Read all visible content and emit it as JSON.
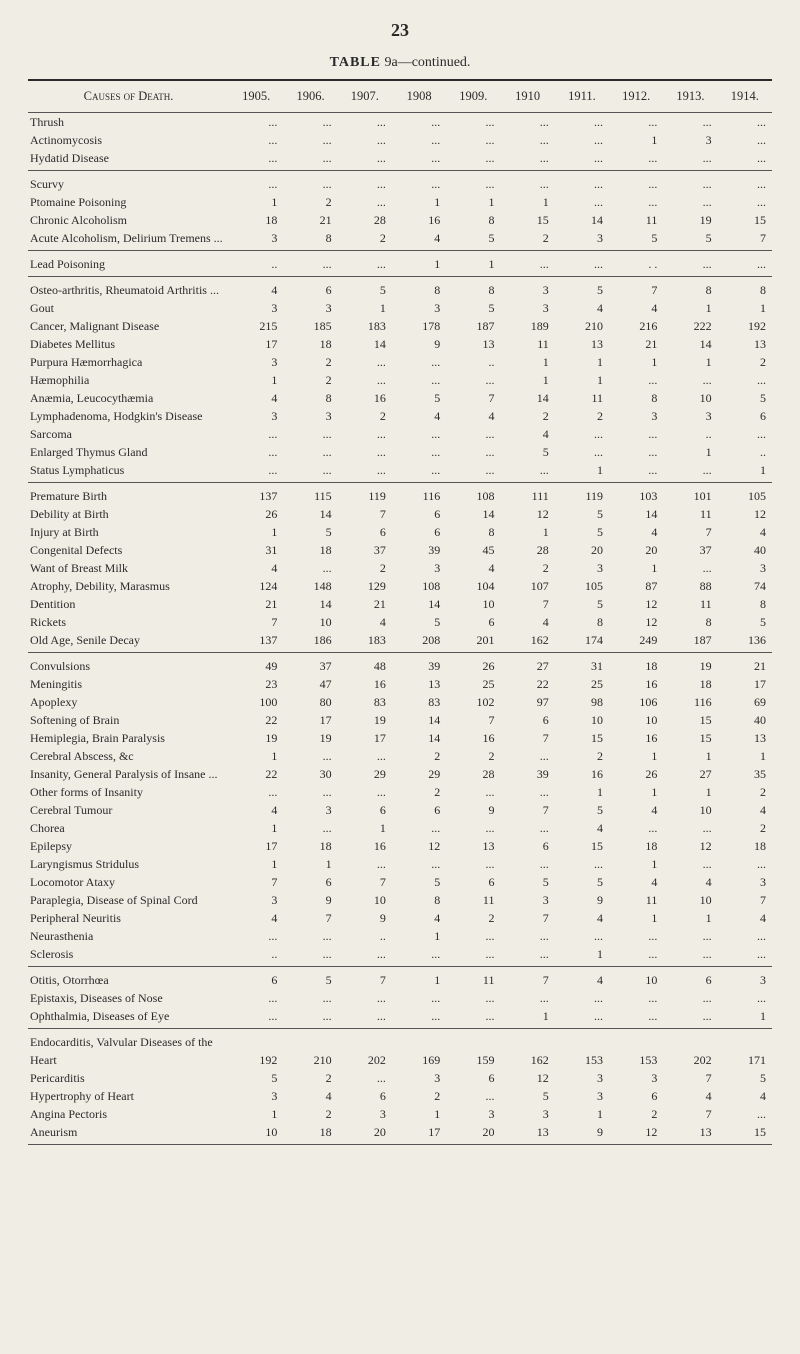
{
  "page_number": "23",
  "table_title_bold": "TABLE",
  "table_title_rest": "9a—continued.",
  "header_cause": "Causes of Death.",
  "years": [
    "1905.",
    "1906.",
    "1907.",
    "1908",
    "1909.",
    "1910",
    "1911.",
    "1912.",
    "1913.",
    "1914."
  ],
  "sections": [
    {
      "rows": [
        {
          "label": "Thrush ",
          "v": [
            "...",
            "...",
            "...",
            "...",
            "...",
            "...",
            "...",
            "...",
            "...",
            "..."
          ]
        },
        {
          "label": "Actinomycosis ",
          "v": [
            "...",
            "...",
            "...",
            "...",
            "...",
            "...",
            "...",
            "1",
            "3",
            "..."
          ]
        },
        {
          "label": "Hydatid Disease ",
          "v": [
            "...",
            "...",
            "...",
            "...",
            "...",
            "...",
            "...",
            "...",
            "...",
            "..."
          ]
        }
      ]
    },
    {
      "rows": [
        {
          "label": "Scurvy ",
          "v": [
            "...",
            "...",
            "...",
            "...",
            "...",
            "...",
            "...",
            "...",
            "...",
            "..."
          ]
        },
        {
          "label": "Ptomaine Poisoning ",
          "v": [
            "1",
            "2",
            "...",
            "1",
            "1",
            "1",
            "...",
            "...",
            "...",
            "..."
          ]
        },
        {
          "label": "Chronic Alcoholism ",
          "v": [
            "18",
            "21",
            "28",
            "16",
            "8",
            "15",
            "14",
            "11",
            "19",
            "15"
          ]
        },
        {
          "label": "Acute Alcoholism, Delirium Tremens ...",
          "v": [
            "3",
            "8",
            "2",
            "4",
            "5",
            "2",
            "3",
            "5",
            "5",
            "7"
          ]
        }
      ]
    },
    {
      "rows": [
        {
          "label": "Lead Poisoning ",
          "v": [
            "..",
            "...",
            "...",
            "1",
            "1",
            "...",
            "...",
            ". .",
            "...",
            "..."
          ]
        }
      ]
    },
    {
      "rows": [
        {
          "label": "Osteo-arthritis, Rheumatoid Arthritis ...",
          "v": [
            "4",
            "6",
            "5",
            "8",
            "8",
            "3",
            "5",
            "7",
            "8",
            "8"
          ]
        },
        {
          "label": "Gout ",
          "v": [
            "3",
            "3",
            "1",
            "3",
            "5",
            "3",
            "4",
            "4",
            "1",
            "1"
          ]
        },
        {
          "label": "Cancer, Malignant Disease ",
          "v": [
            "215",
            "185",
            "183",
            "178",
            "187",
            "189",
            "210",
            "216",
            "222",
            "192"
          ]
        },
        {
          "label": "Diabetes Mellitus ",
          "v": [
            "17",
            "18",
            "14",
            "9",
            "13",
            "11",
            "13",
            "21",
            "14",
            "13"
          ]
        },
        {
          "label": "Purpura Hæmorrhagica ",
          "v": [
            "3",
            "2",
            "...",
            "...",
            "..",
            "1",
            "1",
            "1",
            "1",
            "2"
          ]
        },
        {
          "label": "Hæmophilia ",
          "v": [
            "1",
            "2",
            "...",
            "...",
            "...",
            "1",
            "1",
            "...",
            "...",
            "..."
          ]
        },
        {
          "label": "Anæmia, Leucocythæmia ",
          "v": [
            "4",
            "8",
            "16",
            "5",
            "7",
            "14",
            "11",
            "8",
            "10",
            "5"
          ]
        },
        {
          "label": "Lymphadenoma, Hodgkin's Disease ",
          "v": [
            "3",
            "3",
            "2",
            "4",
            "4",
            "2",
            "2",
            "3",
            "3",
            "6"
          ]
        },
        {
          "label": "Sarcoma ",
          "v": [
            "...",
            "...",
            "...",
            "...",
            "...",
            "4",
            "...",
            "...",
            "..",
            "..."
          ]
        },
        {
          "label": "Enlarged Thymus Gland ",
          "v": [
            "...",
            "...",
            "...",
            "...",
            "...",
            "5",
            "...",
            "...",
            "1",
            ".."
          ]
        },
        {
          "label": "Status Lymphaticus ",
          "v": [
            "...",
            "...",
            "...",
            "...",
            "...",
            "...",
            "1",
            "...",
            "...",
            "1"
          ]
        }
      ]
    },
    {
      "rows": [
        {
          "label": "Premature Birth ",
          "v": [
            "137",
            "115",
            "119",
            "116",
            "108",
            "111",
            "119",
            "103",
            "101",
            "105"
          ]
        },
        {
          "label": "Debility at Birth ",
          "v": [
            "26",
            "14",
            "7",
            "6",
            "14",
            "12",
            "5",
            "14",
            "11",
            "12"
          ]
        },
        {
          "label": "Injury at Birth ",
          "v": [
            "1",
            "5",
            "6",
            "6",
            "8",
            "1",
            "5",
            "4",
            "7",
            "4"
          ]
        },
        {
          "label": "Congenital Defects ",
          "v": [
            "31",
            "18",
            "37",
            "39",
            "45",
            "28",
            "20",
            "20",
            "37",
            "40"
          ]
        },
        {
          "label": "Want of Breast Milk ",
          "v": [
            "4",
            "...",
            "2",
            "3",
            "4",
            "2",
            "3",
            "1",
            "...",
            "3"
          ]
        },
        {
          "label": "Atrophy, Debility, Marasmus ",
          "v": [
            "124",
            "148",
            "129",
            "108",
            "104",
            "107",
            "105",
            "87",
            "88",
            "74"
          ]
        },
        {
          "label": "Dentition ",
          "v": [
            "21",
            "14",
            "21",
            "14",
            "10",
            "7",
            "5",
            "12",
            "11",
            "8"
          ]
        },
        {
          "label": "Rickets ",
          "v": [
            "7",
            "10",
            "4",
            "5",
            "6",
            "4",
            "8",
            "12",
            "8",
            "5"
          ]
        },
        {
          "label": "Old Age, Senile Decay ",
          "v": [
            "137",
            "186",
            "183",
            "208",
            "201",
            "162",
            "174",
            "249",
            "187",
            "136"
          ]
        }
      ]
    },
    {
      "rows": [
        {
          "label": "Convulsions ",
          "v": [
            "49",
            "37",
            "48",
            "39",
            "26",
            "27",
            "31",
            "18",
            "19",
            "21"
          ]
        },
        {
          "label": "Meningitis ",
          "v": [
            "23",
            "47",
            "16",
            "13",
            "25",
            "22",
            "25",
            "16",
            "18",
            "17"
          ]
        },
        {
          "label": "Apoplexy ",
          "v": [
            "100",
            "80",
            "83",
            "83",
            "102",
            "97",
            "98",
            "106",
            "116",
            "69"
          ]
        },
        {
          "label": "Softening of Brain ",
          "v": [
            "22",
            "17",
            "19",
            "14",
            "7",
            "6",
            "10",
            "10",
            "15",
            "40"
          ]
        },
        {
          "label": "Hemiplegia, Brain Paralysis ",
          "v": [
            "19",
            "19",
            "17",
            "14",
            "16",
            "7",
            "15",
            "16",
            "15",
            "13"
          ]
        },
        {
          "label": "Cerebral Abscess, &c ",
          "v": [
            "1",
            "...",
            "...",
            "2",
            "2",
            "...",
            "2",
            "1",
            "1",
            "1"
          ]
        },
        {
          "label": "Insanity, General Paralysis of Insane ...",
          "v": [
            "22",
            "30",
            "29",
            "29",
            "28",
            "39",
            "16",
            "26",
            "27",
            "35"
          ]
        },
        {
          "label": "Other forms of Insanity ",
          "v": [
            "...",
            "...",
            "...",
            "2",
            "...",
            "...",
            "1",
            "1",
            "1",
            "2"
          ]
        },
        {
          "label": "Cerebral Tumour ",
          "v": [
            "4",
            "3",
            "6",
            "6",
            "9",
            "7",
            "5",
            "4",
            "10",
            "4"
          ]
        },
        {
          "label": "Chorea ",
          "v": [
            "1",
            "...",
            "1",
            "...",
            "...",
            "...",
            "4",
            "...",
            "...",
            "2"
          ]
        },
        {
          "label": "Epilepsy ",
          "v": [
            "17",
            "18",
            "16",
            "12",
            "13",
            "6",
            "15",
            "18",
            "12",
            "18"
          ]
        },
        {
          "label": "Laryngismus Stridulus ",
          "v": [
            "1",
            "1",
            "...",
            "...",
            "...",
            "...",
            "...",
            "1",
            "...",
            "..."
          ]
        },
        {
          "label": "Locomotor Ataxy ",
          "v": [
            "7",
            "6",
            "7",
            "5",
            "6",
            "5",
            "5",
            "4",
            "4",
            "3"
          ]
        },
        {
          "label": "Paraplegia, Disease of Spinal Cord ",
          "v": [
            "3",
            "9",
            "10",
            "8",
            "11",
            "3",
            "9",
            "11",
            "10",
            "7"
          ]
        },
        {
          "label": "Peripheral Neuritis ",
          "v": [
            "4",
            "7",
            "9",
            "4",
            "2",
            "7",
            "4",
            "1",
            "1",
            "4"
          ]
        },
        {
          "label": "Neurasthenia ",
          "v": [
            "...",
            "...",
            "..",
            "1",
            "...",
            "...",
            "...",
            "...",
            "...",
            "..."
          ]
        },
        {
          "label": "Sclerosis ",
          "v": [
            "..",
            "...",
            "...",
            "...",
            "...",
            "...",
            "1",
            "...",
            "...",
            "..."
          ]
        }
      ]
    },
    {
      "rows": [
        {
          "label": "Otitis, Otorrhœa ",
          "v": [
            "6",
            "5",
            "7",
            "1",
            "11",
            "7",
            "4",
            "10",
            "6",
            "3"
          ]
        },
        {
          "label": "Epistaxis, Diseases of Nose ",
          "v": [
            "...",
            "...",
            "...",
            "...",
            "...",
            "...",
            "...",
            "...",
            "...",
            "..."
          ]
        },
        {
          "label": "Ophthalmia, Diseases of Eye ",
          "v": [
            "...",
            "...",
            "...",
            "...",
            "...",
            "1",
            "...",
            "...",
            "...",
            "1"
          ]
        }
      ]
    },
    {
      "rows": [
        {
          "label": "Endocarditis, Valvular Diseases of the",
          "v": [
            "",
            "",
            "",
            "",
            "",
            "",
            "",
            "",
            "",
            ""
          ]
        },
        {
          "label": "    Heart ",
          "v": [
            "192",
            "210",
            "202",
            "169",
            "159",
            "162",
            "153",
            "153",
            "202",
            "171"
          ]
        },
        {
          "label": "Pericarditis ",
          "v": [
            "5",
            "2",
            "...",
            "3",
            "6",
            "12",
            "3",
            "3",
            "7",
            "5"
          ]
        },
        {
          "label": "Hypertrophy of Heart ",
          "v": [
            "3",
            "4",
            "6",
            "2",
            "...",
            "5",
            "3",
            "6",
            "4",
            "4"
          ]
        },
        {
          "label": "Angina Pectoris ",
          "v": [
            "1",
            "2",
            "3",
            "1",
            "3",
            "3",
            "1",
            "2",
            "7",
            "..."
          ]
        },
        {
          "label": "Aneurism ",
          "v": [
            "10",
            "18",
            "20",
            "17",
            "20",
            "13",
            "9",
            "12",
            "13",
            "15"
          ]
        }
      ]
    }
  ]
}
